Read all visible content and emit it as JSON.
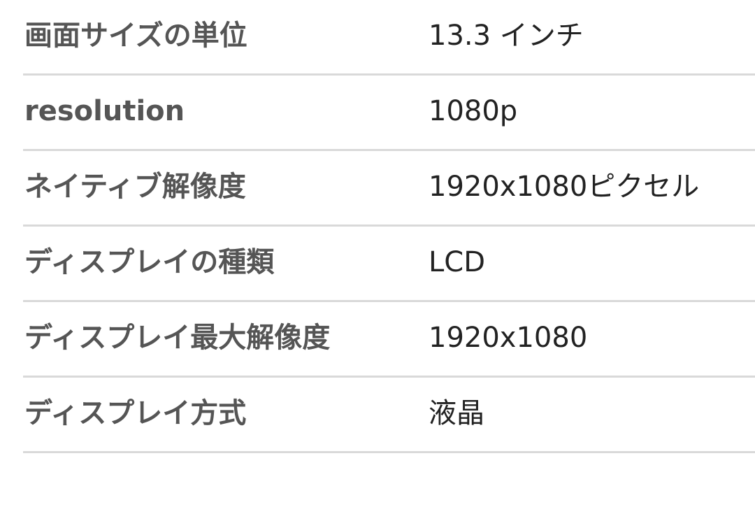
{
  "specs": [
    {
      "label": "画面サイズの単位",
      "value": "13.3 インチ"
    },
    {
      "label": "resolution",
      "value": "1080p"
    },
    {
      "label": "ネイティブ解像度",
      "value": "1920x1080ピクセル"
    },
    {
      "label": "ディスプレイの種類",
      "value": "LCD"
    },
    {
      "label": "ディスプレイ最大解像度",
      "value": "1920x1080"
    },
    {
      "label": "ディスプレイ方式",
      "value": "液晶"
    }
  ]
}
